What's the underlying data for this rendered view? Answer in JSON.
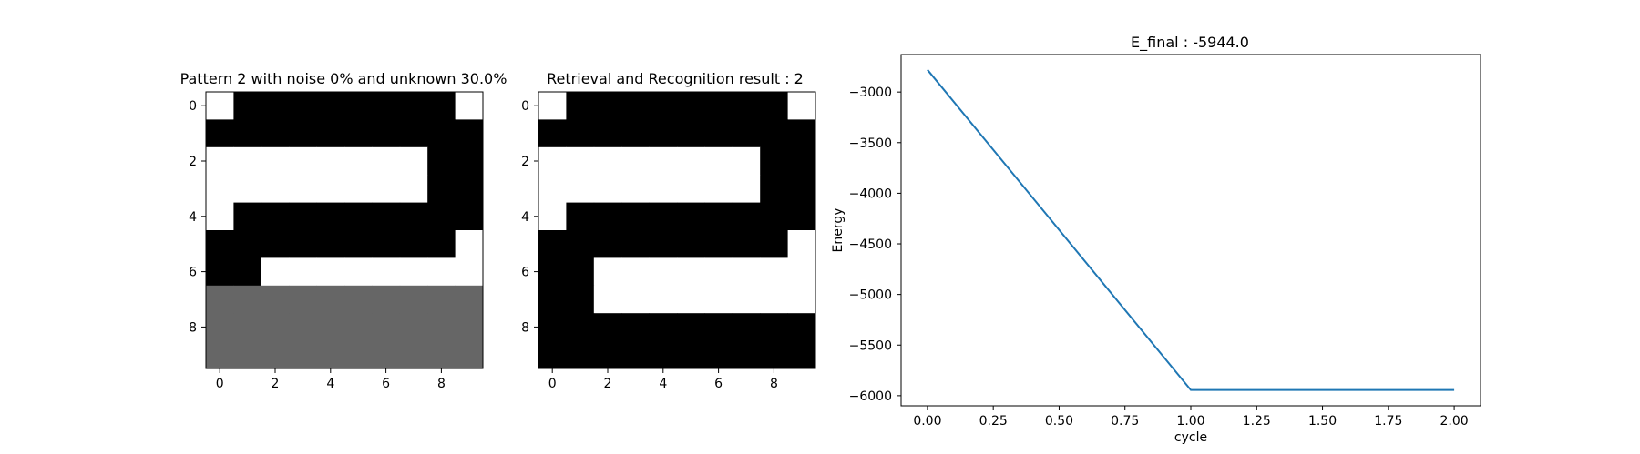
{
  "chart_data": [
    {
      "type": "heatmap",
      "title": "Pattern 2 with noise 0% and unknown 30.0%",
      "x_ticks": [
        "0",
        "2",
        "4",
        "6",
        "8"
      ],
      "y_ticks": [
        "0",
        "2",
        "4",
        "6",
        "8"
      ],
      "colormap": {
        "-1": "#ffffff",
        "0": "#666666",
        "1": "#000000"
      },
      "grid": [
        [
          -1,
          1,
          1,
          1,
          1,
          1,
          1,
          1,
          1,
          -1
        ],
        [
          1,
          1,
          1,
          1,
          1,
          1,
          1,
          1,
          1,
          1
        ],
        [
          -1,
          -1,
          -1,
          -1,
          -1,
          -1,
          -1,
          -1,
          1,
          1
        ],
        [
          -1,
          -1,
          -1,
          -1,
          -1,
          -1,
          -1,
          -1,
          1,
          1
        ],
        [
          -1,
          1,
          1,
          1,
          1,
          1,
          1,
          1,
          1,
          1
        ],
        [
          1,
          1,
          1,
          1,
          1,
          1,
          1,
          1,
          1,
          -1
        ],
        [
          1,
          1,
          -1,
          -1,
          -1,
          -1,
          -1,
          -1,
          -1,
          -1
        ],
        [
          0,
          0,
          0,
          0,
          0,
          0,
          0,
          0,
          0,
          0
        ],
        [
          0,
          0,
          0,
          0,
          0,
          0,
          0,
          0,
          0,
          0
        ],
        [
          0,
          0,
          0,
          0,
          0,
          0,
          0,
          0,
          0,
          0
        ]
      ]
    },
    {
      "type": "heatmap",
      "title": "Retrieval and Recognition result : 2",
      "x_ticks": [
        "0",
        "2",
        "4",
        "6",
        "8"
      ],
      "y_ticks": [
        "0",
        "2",
        "4",
        "6",
        "8"
      ],
      "colormap": {
        "-1": "#ffffff",
        "1": "#000000"
      },
      "grid": [
        [
          -1,
          1,
          1,
          1,
          1,
          1,
          1,
          1,
          1,
          -1
        ],
        [
          1,
          1,
          1,
          1,
          1,
          1,
          1,
          1,
          1,
          1
        ],
        [
          -1,
          -1,
          -1,
          -1,
          -1,
          -1,
          -1,
          -1,
          1,
          1
        ],
        [
          -1,
          -1,
          -1,
          -1,
          -1,
          -1,
          -1,
          -1,
          1,
          1
        ],
        [
          -1,
          1,
          1,
          1,
          1,
          1,
          1,
          1,
          1,
          1
        ],
        [
          1,
          1,
          1,
          1,
          1,
          1,
          1,
          1,
          1,
          -1
        ],
        [
          1,
          1,
          -1,
          -1,
          -1,
          -1,
          -1,
          -1,
          -1,
          -1
        ],
        [
          1,
          1,
          -1,
          -1,
          -1,
          -1,
          -1,
          -1,
          -1,
          -1
        ],
        [
          1,
          1,
          1,
          1,
          1,
          1,
          1,
          1,
          1,
          1
        ],
        [
          1,
          1,
          1,
          1,
          1,
          1,
          1,
          1,
          1,
          1
        ]
      ]
    },
    {
      "type": "line",
      "title": "E_final : -5944.0",
      "xlabel": "cycle",
      "ylabel": "Energy",
      "x": [
        0,
        1,
        2
      ],
      "series": [
        {
          "values": [
            -2780,
            -5944,
            -5944
          ],
          "color": "#1f77b4"
        }
      ],
      "xlim": [
        -0.1,
        2.1
      ],
      "ylim": [
        -6100,
        -2630
      ],
      "x_ticks": [
        0,
        0.25,
        0.5,
        0.75,
        1.0,
        1.25,
        1.5,
        1.75,
        2.0
      ],
      "x_tick_labels": [
        "0.00",
        "0.25",
        "0.50",
        "0.75",
        "1.00",
        "1.25",
        "1.50",
        "1.75",
        "2.00"
      ],
      "y_ticks": [
        -6000,
        -5500,
        -5000,
        -4500,
        -4000,
        -3500,
        -3000
      ],
      "y_tick_labels": [
        "−6000",
        "−5500",
        "−5000",
        "−4500",
        "−4000",
        "−3500",
        "−3000"
      ],
      "grid": false
    }
  ]
}
